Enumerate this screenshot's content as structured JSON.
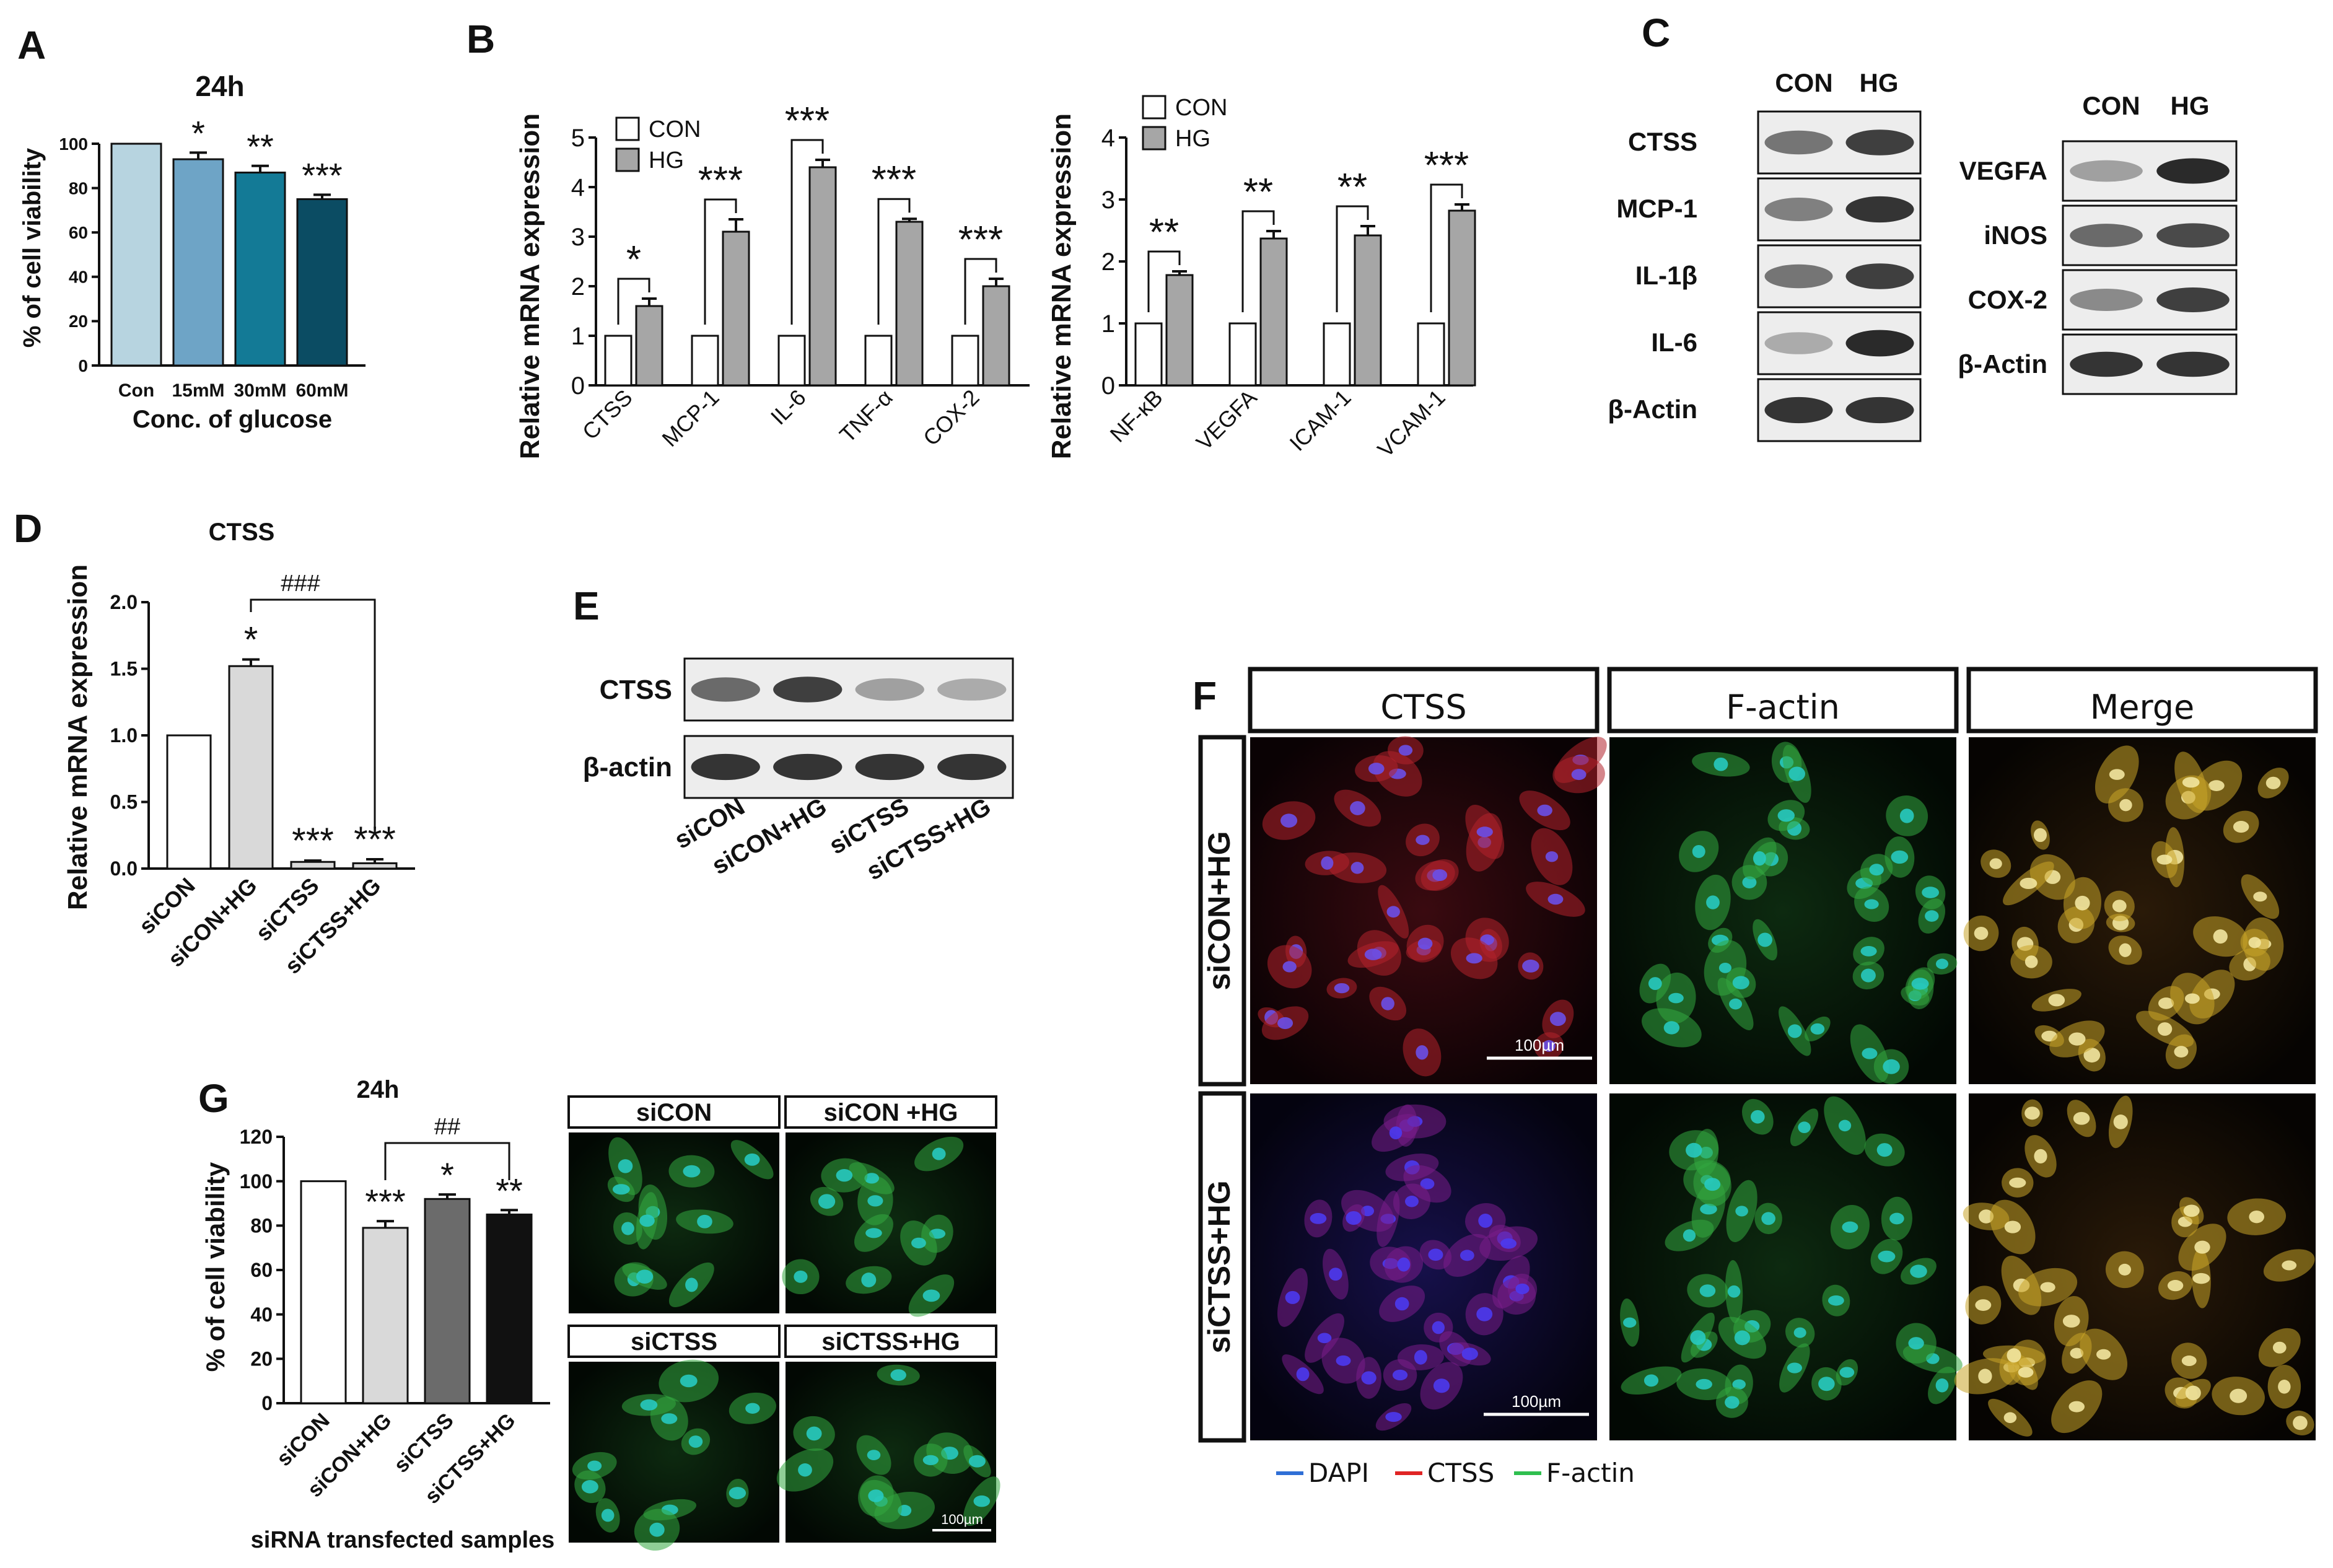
{
  "panels": {
    "A": {
      "letter": "A"
    },
    "B": {
      "letter": "B"
    },
    "C": {
      "letter": "C"
    },
    "D": {
      "letter": "D"
    },
    "E": {
      "letter": "E"
    },
    "F": {
      "letter": "F"
    },
    "G": {
      "letter": "G"
    }
  },
  "colors": {
    "con_fill": "#ffffff",
    "hg_fill": "#a6a6a6",
    "A_bars": [
      "#b7d4e0",
      "#6ea4c6",
      "#137a96",
      "#0b4c63"
    ],
    "G_bars": [
      "#ffffff",
      "#d9d9d9",
      "#6b6b6b",
      "#111111"
    ],
    "D_bars": [
      "#ffffff",
      "#d9d9d9",
      "#d9d9d9",
      "#d9d9d9"
    ],
    "dapi": "#2f6fd6",
    "ctss": "#e02424",
    "factin": "#2fbf4f"
  },
  "blotC": {
    "header": [
      "CON",
      "HG"
    ],
    "left_rows": [
      "CTSS",
      "MCP-1",
      "IL-1β",
      "IL-6",
      "β-Actin"
    ],
    "right_rows": [
      "VEGFA",
      "iNOS",
      "COX-2",
      "β-Actin"
    ]
  },
  "blotE": {
    "rows": [
      "CTSS",
      "β-actin"
    ],
    "lanes": [
      "siCON",
      "siCON+HG",
      "siCTSS",
      "siCTSS+HG"
    ]
  },
  "panelF": {
    "columns": [
      "CTSS",
      "F-actin",
      "Merge"
    ],
    "rows": [
      "siCON+HG",
      "siCTSS+HG"
    ],
    "scale_bar": "100µm",
    "legend": [
      {
        "label": "DAPI",
        "color": "#2f6fd6"
      },
      {
        "label": "CTSS",
        "color": "#e02424"
      },
      {
        "label": "F-actin",
        "color": "#2fbf4f"
      }
    ]
  },
  "panelG_images": {
    "titles": [
      "siCON",
      "siCON +HG",
      "siCTSS",
      "siCTSS+HG"
    ],
    "scale_bar": "100µm"
  },
  "chart_data": [
    {
      "id": "A",
      "type": "bar",
      "title": "24h",
      "xlabel": "Conc. of glucose",
      "ylabel": "% of cell viability",
      "categories": [
        "Con",
        "15mM",
        "30mM",
        "60mM"
      ],
      "values": [
        100,
        93,
        87,
        75
      ],
      "errors": [
        0,
        3,
        3,
        2
      ],
      "significance": [
        "",
        "*",
        "**",
        "***"
      ],
      "ylim": [
        0,
        100
      ],
      "yticks": [
        0,
        20,
        40,
        60,
        80,
        100
      ]
    },
    {
      "id": "B1",
      "type": "bar",
      "ylabel": "Relative mRNA expression",
      "categories": [
        "CTSS",
        "MCP-1",
        "IL-6",
        "TNF-α",
        "COX-2"
      ],
      "series": [
        {
          "name": "CON",
          "values": [
            1,
            1,
            1,
            1,
            1
          ]
        },
        {
          "name": "HG",
          "values": [
            1.6,
            3.1,
            4.4,
            3.3,
            2.0
          ],
          "errors": [
            0.15,
            0.25,
            0.15,
            0.06,
            0.15
          ]
        }
      ],
      "significance": [
        "*",
        "***",
        "***",
        "***",
        "***"
      ],
      "ylim": [
        0,
        5
      ],
      "yticks": [
        0,
        1,
        2,
        3,
        4,
        5
      ]
    },
    {
      "id": "B2",
      "type": "bar",
      "ylabel": "Relative mRNA expression",
      "categories": [
        "NF-κB",
        "VEGFA",
        "ICAM-1",
        "VCAM-1"
      ],
      "series": [
        {
          "name": "CON",
          "values": [
            1,
            1,
            1,
            1
          ]
        },
        {
          "name": "HG",
          "values": [
            1.78,
            2.37,
            2.42,
            2.82
          ],
          "errors": [
            0.06,
            0.12,
            0.15,
            0.1
          ]
        }
      ],
      "significance": [
        "**",
        "**",
        "**",
        "***"
      ],
      "ylim": [
        0,
        4
      ],
      "yticks": [
        0,
        1,
        2,
        3,
        4
      ]
    },
    {
      "id": "D",
      "type": "bar",
      "title": "CTSS",
      "ylabel": "Relative  mRNA expression",
      "categories": [
        "siCON",
        "siCON+HG",
        "siCTSS",
        "siCTSS+HG"
      ],
      "values": [
        1.0,
        1.52,
        0.05,
        0.04
      ],
      "errors": [
        0,
        0.05,
        0.01,
        0.03
      ],
      "significance": [
        "",
        "*",
        "***",
        "***"
      ],
      "bracket": "###",
      "ylim": [
        0,
        2.0
      ],
      "yticks": [
        "0.0",
        "0.5",
        "1.0",
        "1.5",
        "2.0"
      ]
    },
    {
      "id": "G",
      "type": "bar",
      "title": "24h",
      "xlabel": "siRNA transfected samples",
      "ylabel": "% of cell viability",
      "categories": [
        "siCON",
        "siCON+HG",
        "siCTSS",
        "siCTSS+HG"
      ],
      "values": [
        100,
        79,
        92,
        85
      ],
      "errors": [
        0,
        3,
        2,
        2
      ],
      "significance": [
        "",
        "***",
        "*",
        "**"
      ],
      "bracket": "##",
      "ylim": [
        0,
        120
      ],
      "yticks": [
        0,
        20,
        40,
        60,
        80,
        100,
        120
      ]
    }
  ]
}
